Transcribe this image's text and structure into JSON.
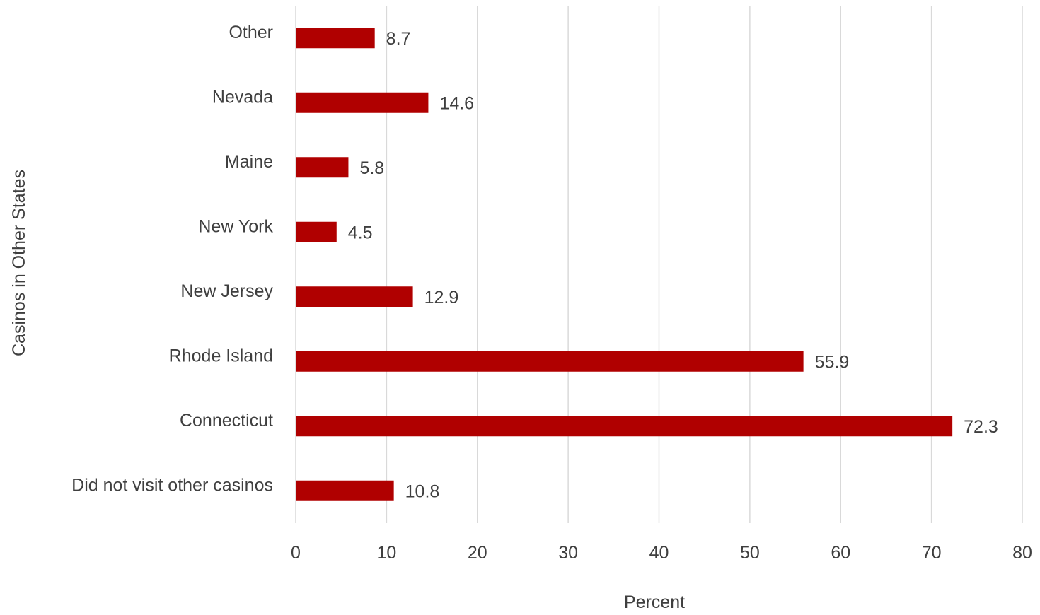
{
  "chart_data": {
    "type": "bar",
    "orientation": "horizontal",
    "categories": [
      "Did not visit other casinos",
      "Connecticut",
      "Rhode Island",
      "New Jersey",
      "New York",
      "Maine",
      "Nevada",
      "Other"
    ],
    "values": [
      10.8,
      72.3,
      55.9,
      12.9,
      4.5,
      5.8,
      14.6,
      8.7
    ],
    "value_labels": [
      "10.8",
      "72.3",
      "55.9",
      "12.9",
      "4.5",
      "5.8",
      "14.6",
      "8.7"
    ],
    "xlabel": "Percent",
    "ylabel": "Casinos in Other States",
    "xlim": [
      0,
      80
    ],
    "xticks": [
      0,
      10,
      20,
      30,
      40,
      50,
      60,
      70,
      80
    ],
    "bar_color": "#b00000",
    "grid": true,
    "legend": "none"
  }
}
